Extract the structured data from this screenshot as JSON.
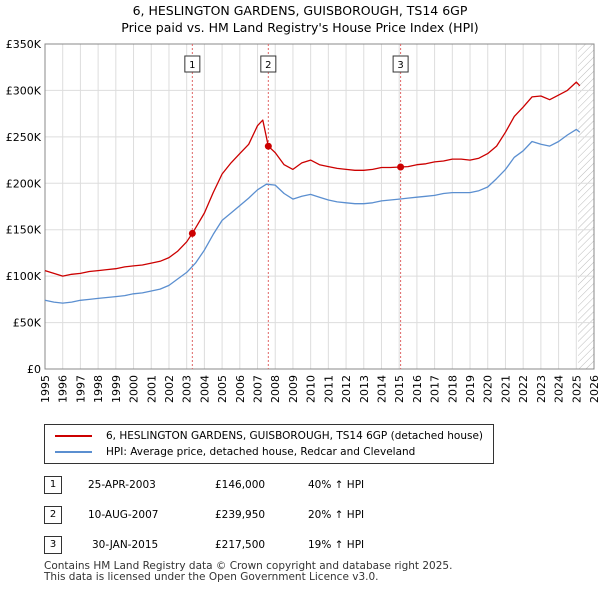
{
  "title": {
    "line1": "6, HESLINGTON GARDENS, GUISBOROUGH, TS14 6GP",
    "line2": "Price paid vs. HM Land Registry's House Price Index (HPI)"
  },
  "colors": {
    "price_paid": "#cc0000",
    "hpi": "#5b8fd0",
    "marker_line": "#e06666",
    "hatch": "#bbbbbb"
  },
  "chart_data": {
    "type": "line",
    "title": "",
    "xlabel": "",
    "ylabel": "",
    "xlim": [
      1995,
      2026
    ],
    "ylim": [
      0,
      350000
    ],
    "grid": true,
    "y_ticks": [
      {
        "value": 0,
        "label": "£0"
      },
      {
        "value": 50000,
        "label": "£50K"
      },
      {
        "value": 100000,
        "label": "£100K"
      },
      {
        "value": 150000,
        "label": "£150K"
      },
      {
        "value": 200000,
        "label": "£200K"
      },
      {
        "value": 250000,
        "label": "£250K"
      },
      {
        "value": 300000,
        "label": "£300K"
      },
      {
        "value": 350000,
        "label": "£350K"
      }
    ],
    "x_ticks": [
      "1995",
      "1996",
      "1997",
      "1998",
      "1999",
      "2000",
      "2001",
      "2002",
      "2003",
      "2004",
      "2005",
      "2006",
      "2007",
      "2008",
      "2009",
      "2010",
      "2011",
      "2012",
      "2013",
      "2014",
      "2015",
      "2016",
      "2017",
      "2018",
      "2019",
      "2020",
      "2021",
      "2022",
      "2023",
      "2024",
      "2025",
      "2026"
    ],
    "hatch_from": 2025.1,
    "series": [
      {
        "name": "6, HESLINGTON GARDENS, GUISBOROUGH, TS14 6GP (detached house)",
        "x": [
          1995.0,
          1995.5,
          1996.0,
          1996.5,
          1997.0,
          1997.5,
          1998.0,
          1998.5,
          1999.0,
          1999.5,
          2000.0,
          2000.5,
          2001.0,
          2001.5,
          2002.0,
          2002.5,
          2003.0,
          2003.32,
          2003.6,
          2004.0,
          2004.5,
          2005.0,
          2005.5,
          2006.0,
          2006.5,
          2007.0,
          2007.3,
          2007.61,
          2008.0,
          2008.5,
          2009.0,
          2009.5,
          2010.0,
          2010.5,
          2011.0,
          2011.5,
          2012.0,
          2012.5,
          2013.0,
          2013.5,
          2014.0,
          2014.5,
          2015.08,
          2015.5,
          2016.0,
          2016.5,
          2017.0,
          2017.5,
          2018.0,
          2018.5,
          2019.0,
          2019.5,
          2020.0,
          2020.5,
          2021.0,
          2021.5,
          2022.0,
          2022.5,
          2023.0,
          2023.5,
          2024.0,
          2024.5,
          2025.0,
          2025.2
        ],
        "values": [
          106000,
          103000,
          100000,
          102000,
          103000,
          105000,
          106000,
          107000,
          108000,
          110000,
          111000,
          112000,
          114000,
          116000,
          120000,
          127000,
          137000,
          146000,
          155000,
          168000,
          190000,
          210000,
          222000,
          232000,
          242000,
          262000,
          268000,
          239950,
          233000,
          220000,
          215000,
          222000,
          225000,
          220000,
          218000,
          216000,
          215000,
          214000,
          214000,
          215000,
          217000,
          217000,
          217500,
          218000,
          220000,
          221000,
          223000,
          224000,
          226000,
          226000,
          225000,
          227000,
          232000,
          240000,
          255000,
          272000,
          282000,
          293000,
          294000,
          290000,
          295000,
          300000,
          309000,
          305000
        ]
      },
      {
        "name": "HPI: Average price, detached house, Redcar and Cleveland",
        "x": [
          1995.0,
          1995.5,
          1996.0,
          1996.5,
          1997.0,
          1997.5,
          1998.0,
          1998.5,
          1999.0,
          1999.5,
          2000.0,
          2000.5,
          2001.0,
          2001.5,
          2002.0,
          2002.5,
          2003.0,
          2003.5,
          2004.0,
          2004.5,
          2005.0,
          2005.5,
          2006.0,
          2006.5,
          2007.0,
          2007.5,
          2008.0,
          2008.5,
          2009.0,
          2009.5,
          2010.0,
          2010.5,
          2011.0,
          2011.5,
          2012.0,
          2012.5,
          2013.0,
          2013.5,
          2014.0,
          2014.5,
          2015.0,
          2015.5,
          2016.0,
          2016.5,
          2017.0,
          2017.5,
          2018.0,
          2018.5,
          2019.0,
          2019.5,
          2020.0,
          2020.5,
          2021.0,
          2021.5,
          2022.0,
          2022.5,
          2023.0,
          2023.5,
          2024.0,
          2024.5,
          2025.0,
          2025.2
        ],
        "values": [
          74000,
          72000,
          71000,
          72000,
          74000,
          75000,
          76000,
          77000,
          78000,
          79000,
          81000,
          82000,
          84000,
          86000,
          90000,
          97000,
          104000,
          114000,
          128000,
          145000,
          160000,
          168000,
          176000,
          184000,
          193000,
          199000,
          198000,
          189000,
          183000,
          186000,
          188000,
          185000,
          182000,
          180000,
          179000,
          178000,
          178000,
          179000,
          181000,
          182000,
          183000,
          184000,
          185000,
          186000,
          187000,
          189000,
          190000,
          190000,
          190000,
          192000,
          196000,
          205000,
          215000,
          228000,
          235000,
          245000,
          242000,
          240000,
          245000,
          252000,
          258000,
          255000
        ]
      }
    ],
    "sale_markers": [
      {
        "label": "1",
        "x": 2003.32,
        "value": 146000
      },
      {
        "label": "2",
        "x": 2007.61,
        "value": 239950
      },
      {
        "label": "3",
        "x": 2015.08,
        "value": 217500
      }
    ]
  },
  "legend": {
    "entries": [
      "6, HESLINGTON GARDENS, GUISBOROUGH, TS14 6GP (detached house)",
      "HPI: Average price, detached house, Redcar and Cleveland"
    ]
  },
  "sales": [
    {
      "num": "1",
      "date": "25-APR-2003",
      "price": "£146,000",
      "hpi": "40% ↑ HPI"
    },
    {
      "num": "2",
      "date": "10-AUG-2007",
      "price": "£239,950",
      "hpi": "20% ↑ HPI"
    },
    {
      "num": "3",
      "date": "30-JAN-2015",
      "price": "£217,500",
      "hpi": "19% ↑ HPI"
    }
  ],
  "footer": {
    "line1": "Contains HM Land Registry data © Crown copyright and database right 2025.",
    "line2": "This data is licensed under the Open Government Licence v3.0."
  }
}
